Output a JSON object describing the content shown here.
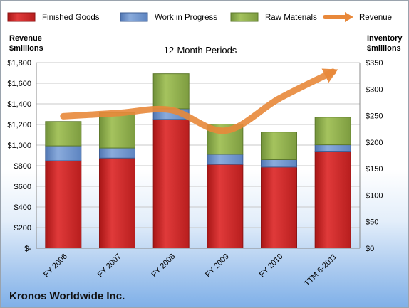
{
  "company": "Kronos Worldwide Inc.",
  "chart_data": {
    "type": "bar",
    "stacked": true,
    "title": "12-Month Periods",
    "left_axis_title": [
      "Revenue",
      "$millions"
    ],
    "right_axis_title": [
      "Inventory",
      "$millions"
    ],
    "categories": [
      "FY 2006",
      "FY 2007",
      "FY 2008",
      "FY 2009",
      "FY 2010",
      "TTM 6-2011"
    ],
    "left_ticks": [
      "$-",
      "$200",
      "$400",
      "$600",
      "$800",
      "$1,000",
      "$1,200",
      "$1,400",
      "$1,600",
      "$1,800"
    ],
    "right_ticks": [
      "$0",
      "$50",
      "$100",
      "$150",
      "$200",
      "$250",
      "$300",
      "$350"
    ],
    "left_ylim": [
      0,
      1800
    ],
    "right_ylim": [
      0,
      350
    ],
    "legend_position": "top",
    "grid": true,
    "series": [
      {
        "name": "Finished Goods",
        "axis": "right",
        "color": "#d42a2a",
        "values": [
          165,
          170,
          243,
          158,
          153,
          183
        ]
      },
      {
        "name": "Work in Progress",
        "axis": "right",
        "color": "#6f95cf",
        "values": [
          28,
          19,
          20,
          19,
          14,
          12
        ]
      },
      {
        "name": "Raw Materials",
        "axis": "right",
        "color": "#8fb04a",
        "values": [
          46,
          67,
          66,
          57,
          52,
          52
        ]
      },
      {
        "name": "Revenue",
        "axis": "left",
        "type": "line",
        "color": "#e8883a",
        "values": [
          1280,
          1310,
          1340,
          1140,
          1450,
          1710
        ]
      }
    ]
  }
}
